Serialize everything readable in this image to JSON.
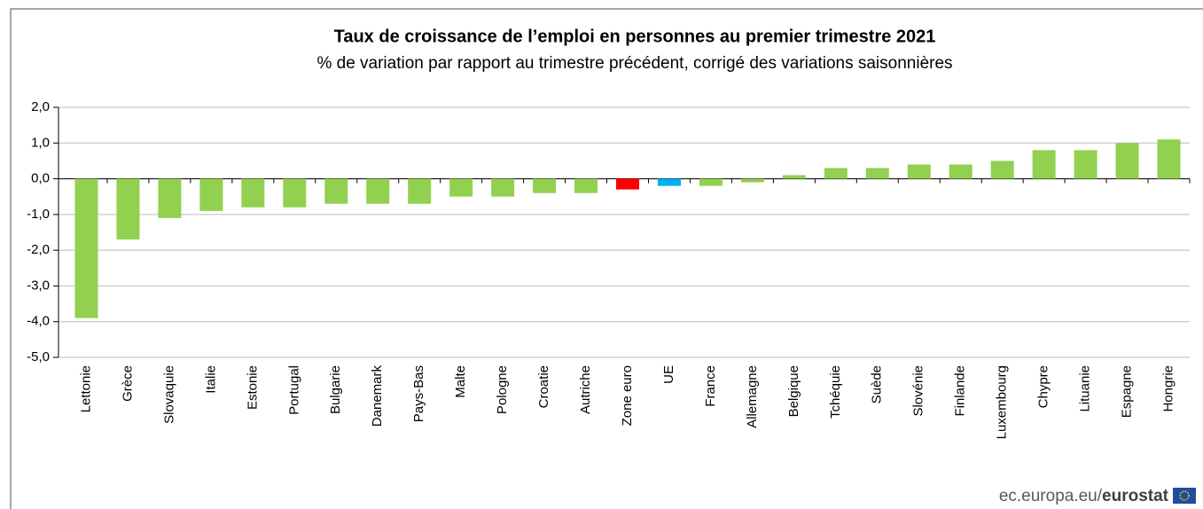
{
  "chart_data": {
    "type": "bar",
    "title": "Taux de croissance  de l’emploi en personnes au premier trimestre 2021",
    "subtitle": "% de variation  par rapport  au trimestre précédent,  corrigé des variations  saisonnières",
    "categories": [
      "Lettonie",
      "Grèce",
      "Slovaquie",
      "Italie",
      "Estonie",
      "Portugal",
      "Bulgarie",
      "Danemark",
      "Pays-Bas",
      "Malte",
      "Pologne",
      "Croatie",
      "Autriche",
      "Zone euro",
      "UE",
      "France",
      "Allemagne",
      "Belgique",
      "Tchéquie",
      "Suède",
      "Slovénie",
      "Finlande",
      "Luxembourg",
      "Chypre",
      "Lituanie",
      "Espagne",
      "Hongrie"
    ],
    "values": [
      -3.9,
      -1.7,
      -1.1,
      -0.9,
      -0.8,
      -0.8,
      -0.7,
      -0.7,
      -0.7,
      -0.5,
      -0.5,
      -0.4,
      -0.4,
      -0.3,
      -0.2,
      -0.2,
      -0.1,
      0.1,
      0.3,
      0.3,
      0.4,
      0.4,
      0.5,
      0.8,
      0.8,
      1.0,
      1.1
    ],
    "colors": [
      "#92d050",
      "#92d050",
      "#92d050",
      "#92d050",
      "#92d050",
      "#92d050",
      "#92d050",
      "#92d050",
      "#92d050",
      "#92d050",
      "#92d050",
      "#92d050",
      "#92d050",
      "#ff0000",
      "#00b0f0",
      "#92d050",
      "#92d050",
      "#92d050",
      "#92d050",
      "#92d050",
      "#92d050",
      "#92d050",
      "#92d050",
      "#92d050",
      "#92d050",
      "#92d050",
      "#92d050"
    ],
    "ylim": [
      -5,
      2
    ],
    "yticks": [
      {
        "value": 2,
        "label": "2,0"
      },
      {
        "value": 1,
        "label": "1,0"
      },
      {
        "value": 0,
        "label": "0,0"
      },
      {
        "value": -1,
        "label": "-1,0"
      },
      {
        "value": -2,
        "label": "-2,0"
      },
      {
        "value": -3,
        "label": "-3,0"
      },
      {
        "value": -4,
        "label": "-4,0"
      },
      {
        "value": -5,
        "label": "-5,0"
      }
    ],
    "grid": true,
    "source": "ec.europa.eu/",
    "source_brand": "eurostat"
  }
}
